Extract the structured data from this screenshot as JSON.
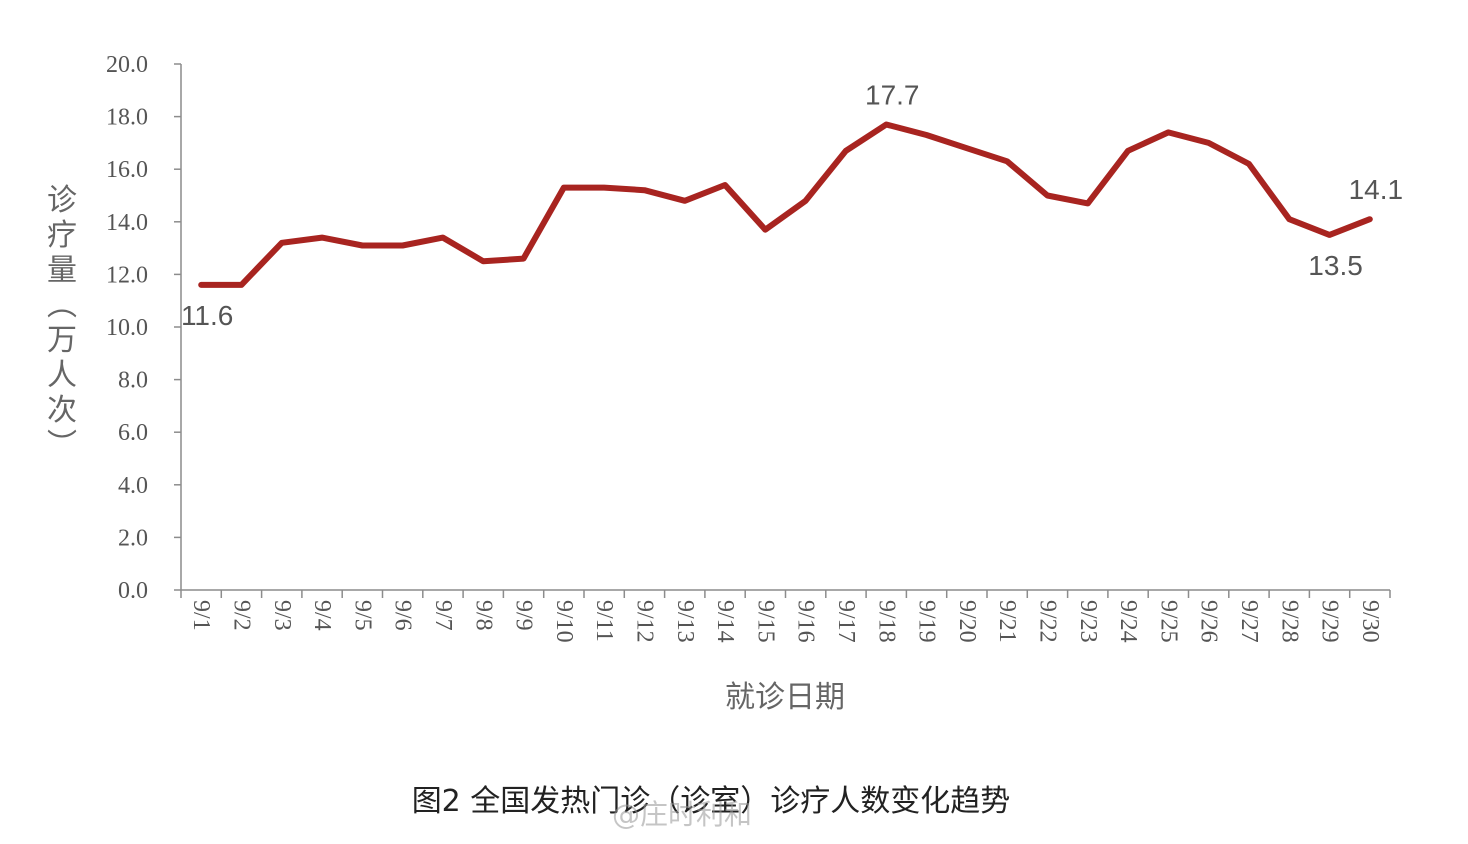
{
  "chart_data": {
    "type": "line",
    "ylabel": "诊疗量（万人次）",
    "xlabel": "就诊日期",
    "ylim": [
      0,
      20
    ],
    "yticks": [
      "0.0",
      "2.0",
      "4.0",
      "6.0",
      "8.0",
      "10.0",
      "12.0",
      "14.0",
      "16.0",
      "18.0",
      "20.0"
    ],
    "categories": [
      "9/1",
      "9/2",
      "9/3",
      "9/4",
      "9/5",
      "9/6",
      "9/7",
      "9/8",
      "9/9",
      "9/10",
      "9/11",
      "9/12",
      "9/13",
      "9/14",
      "9/15",
      "9/16",
      "9/17",
      "9/18",
      "9/19",
      "9/20",
      "9/21",
      "9/22",
      "9/23",
      "9/24",
      "9/25",
      "9/26",
      "9/27",
      "9/28",
      "9/29",
      "9/30"
    ],
    "series": [
      {
        "values": [
          11.6,
          11.6,
          13.2,
          13.4,
          13.1,
          13.1,
          13.4,
          12.5,
          12.6,
          15.3,
          15.3,
          15.2,
          14.8,
          15.4,
          13.7,
          14.8,
          16.7,
          17.7,
          17.3,
          16.8,
          16.3,
          15.0,
          14.7,
          16.7,
          17.4,
          17.0,
          16.2,
          14.1,
          13.5,
          14.1
        ]
      }
    ],
    "annotations": [
      {
        "index": 0,
        "text": "11.6",
        "position": "below"
      },
      {
        "index": 17,
        "text": "17.7",
        "position": "above"
      },
      {
        "index": 28,
        "text": "13.5",
        "position": "below"
      },
      {
        "index": 29,
        "text": "14.1",
        "position": "above"
      }
    ],
    "line_color": "#a82420",
    "grid": false,
    "legend": "none"
  },
  "caption": "图2 全国发热门诊（诊室）诊疗人数变化趋势",
  "watermark": "@庄时利和"
}
